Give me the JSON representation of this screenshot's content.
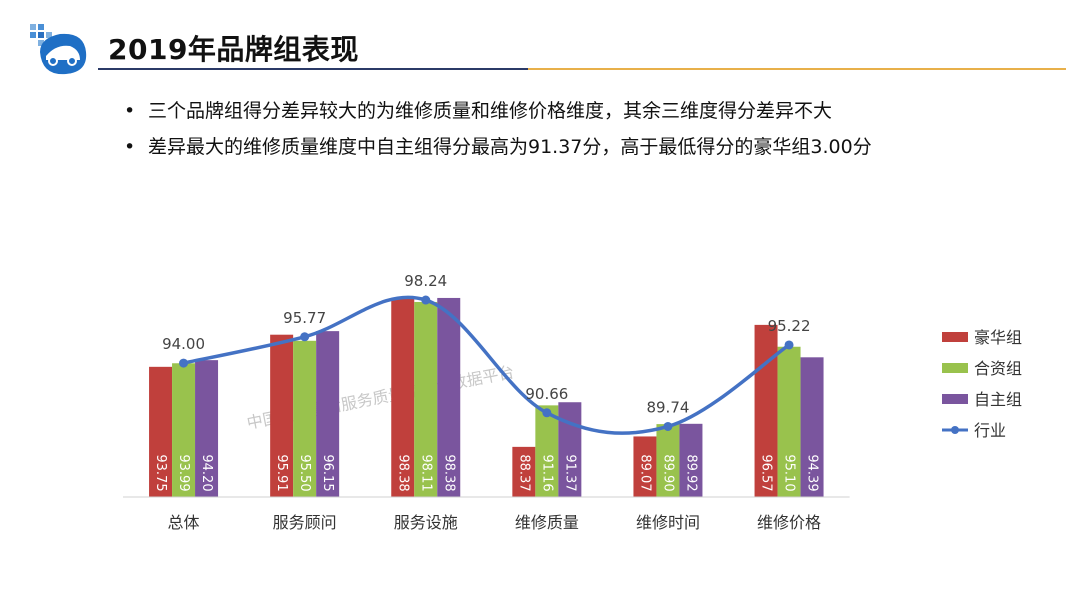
{
  "header": {
    "title": "2019年品牌组表现"
  },
  "bullets": [
    "三个品牌组得分差异较大的为维修质量和维修价格维度，其余三维度得分差异不大",
    "差异最大的维修质量维度中自主组得分最高为91.37分，高于最低得分的豪华组3.00分"
  ],
  "watermark": "中国汽车售后服务质量监测大数据平台",
  "colors": {
    "luxury": "#c0403c",
    "joint": "#99c24d",
    "domestic": "#7a559e",
    "industry": "#4472c4"
  },
  "chart_data": {
    "type": "bar",
    "categories": [
      "总体",
      "服务顾问",
      "服务设施",
      "维修质量",
      "维修时间",
      "维修价格"
    ],
    "series": [
      {
        "name": "豪华组",
        "type": "bar",
        "values": [
          93.75,
          95.91,
          98.38,
          88.37,
          89.07,
          96.57
        ],
        "labels": [
          "93.75",
          "95.91",
          "98.38",
          "88.37",
          "89.07",
          "96.57"
        ]
      },
      {
        "name": "合资组",
        "type": "bar",
        "values": [
          93.99,
          95.5,
          98.11,
          91.16,
          89.9,
          95.1
        ],
        "labels": [
          "93.99",
          "95.50",
          "98.11",
          "91.16",
          "89.90",
          "95.10"
        ]
      },
      {
        "name": "自主组",
        "type": "bar",
        "values": [
          94.2,
          96.15,
          98.38,
          91.37,
          89.92,
          94.39
        ],
        "labels": [
          "94.20",
          "96.15",
          "98.38",
          "91.37",
          "89.92",
          "94.39"
        ]
      },
      {
        "name": "行业",
        "type": "line",
        "values": [
          94.0,
          95.77,
          98.24,
          90.66,
          89.74,
          95.22
        ],
        "labels": [
          "94.00",
          "95.77",
          "98.24",
          "90.66",
          "89.74",
          "95.22"
        ]
      }
    ],
    "legend_position": "right",
    "grid": false
  }
}
